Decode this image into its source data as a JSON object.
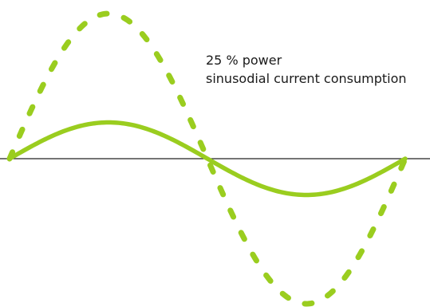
{
  "caption": {
    "line1": "25 % power",
    "line2": "sinusodial current consumption"
  },
  "waves": {
    "dashed_amplitude_ratio": 4,
    "cycles": 1,
    "color": "#9acd1f",
    "axis_color": "#222222"
  }
}
